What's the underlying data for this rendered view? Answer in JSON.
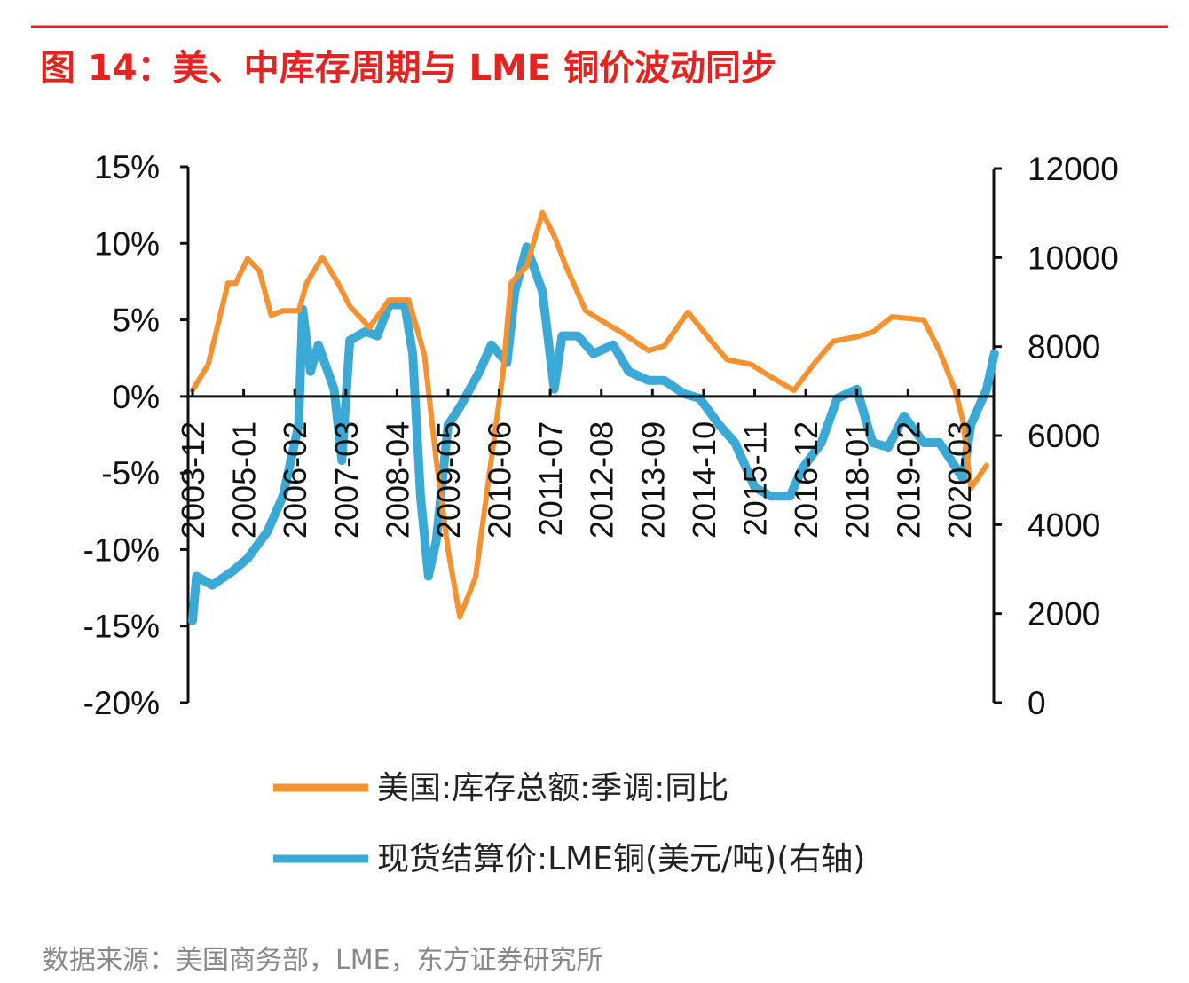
{
  "title": "图 14：美、中库存周期与 LME 铜价波动同步",
  "source": "数据来源：美国商务部，LME，东方证券研究所",
  "chart_data": {
    "type": "line",
    "title": "图 14：美、中库存周期与 LME 铜价波动同步",
    "x_tick_labels": [
      "2003-12",
      "2005-01",
      "2006-02",
      "2007-03",
      "2008-04",
      "2009-05",
      "2010-06",
      "2011-07",
      "2012-08",
      "2013-09",
      "2014-10",
      "2015-11",
      "2016-12",
      "2018-01",
      "2019-02",
      "2020-03"
    ],
    "left_axis": {
      "ylim": [
        -20,
        15
      ],
      "ticks": [
        15,
        10,
        5,
        0,
        -5,
        -10,
        -15,
        -20
      ],
      "tick_labels": [
        "15%",
        "10%",
        "5%",
        "0%",
        "-5%",
        "-10%",
        "-15%",
        "-20%"
      ]
    },
    "right_axis": {
      "ylim": [
        0,
        12000
      ],
      "ticks": [
        12000,
        10000,
        8000,
        6000,
        4000,
        2000,
        0
      ],
      "tick_labels": [
        "12000",
        "10000",
        "8000",
        "6000",
        "4000",
        "2000",
        "0"
      ]
    },
    "grid": false,
    "legend_position": "bottom",
    "series": [
      {
        "name": "美国:库存总额:季调:同比",
        "axis": "left",
        "color": "#F5922F",
        "points": [
          [
            "2003-12",
            0.4
          ],
          [
            "2004-04",
            2.1
          ],
          [
            "2004-09",
            7.4
          ],
          [
            "2004-11",
            7.4
          ],
          [
            "2005-02",
            9.0
          ],
          [
            "2005-05",
            8.2
          ],
          [
            "2005-08",
            5.3
          ],
          [
            "2005-11",
            5.6
          ],
          [
            "2006-03",
            5.6
          ],
          [
            "2006-05",
            7.4
          ],
          [
            "2006-09",
            9.1
          ],
          [
            "2007-01",
            7.4
          ],
          [
            "2007-04",
            5.9
          ],
          [
            "2007-09",
            4.5
          ],
          [
            "2008-02",
            6.3
          ],
          [
            "2008-07",
            6.3
          ],
          [
            "2008-11",
            2.7
          ],
          [
            "2009-02",
            -4.2
          ],
          [
            "2009-05",
            -10.0
          ],
          [
            "2009-08",
            -14.4
          ],
          [
            "2009-12",
            -11.8
          ],
          [
            "2010-03",
            -6.0
          ],
          [
            "2010-07",
            1.6
          ],
          [
            "2010-09",
            7.4
          ],
          [
            "2011-01",
            8.5
          ],
          [
            "2011-05",
            12.0
          ],
          [
            "2011-08",
            10.5
          ],
          [
            "2011-11",
            8.5
          ],
          [
            "2012-04",
            5.6
          ],
          [
            "2012-09",
            4.8
          ],
          [
            "2013-01",
            4.2
          ],
          [
            "2013-08",
            3.0
          ],
          [
            "2013-12",
            3.3
          ],
          [
            "2014-06",
            5.5
          ],
          [
            "2014-12",
            3.6
          ],
          [
            "2015-04",
            2.4
          ],
          [
            "2015-10",
            2.1
          ],
          [
            "2016-03",
            1.3
          ],
          [
            "2016-09",
            0.4
          ],
          [
            "2017-02",
            2.1
          ],
          [
            "2017-07",
            3.6
          ],
          [
            "2018-01",
            3.9
          ],
          [
            "2018-05",
            4.2
          ],
          [
            "2018-10",
            5.2
          ],
          [
            "2019-06",
            5.0
          ],
          [
            "2019-10",
            3.0
          ],
          [
            "2020-02",
            0.4
          ],
          [
            "2020-04",
            -1.6
          ],
          [
            "2020-06",
            -6.0
          ],
          [
            "2020-10",
            -4.5
          ]
        ]
      },
      {
        "name": "现货结算价:LME铜(美元/吨)(右轴)",
        "axis": "right",
        "color": "#3BA9D6",
        "points": [
          [
            "2003-12",
            1840
          ],
          [
            "2004-01",
            2840
          ],
          [
            "2004-05",
            2640
          ],
          [
            "2004-10",
            2940
          ],
          [
            "2005-02",
            3240
          ],
          [
            "2005-07",
            3840
          ],
          [
            "2005-11",
            4640
          ],
          [
            "2006-03",
            6240
          ],
          [
            "2006-04",
            8840
          ],
          [
            "2006-06",
            7440
          ],
          [
            "2006-08",
            8040
          ],
          [
            "2006-12",
            7040
          ],
          [
            "2007-02",
            5440
          ],
          [
            "2007-04",
            8140
          ],
          [
            "2007-08",
            8340
          ],
          [
            "2007-11",
            8240
          ],
          [
            "2008-02",
            8940
          ],
          [
            "2008-06",
            8940
          ],
          [
            "2008-08",
            7840
          ],
          [
            "2008-10",
            4640
          ],
          [
            "2008-12",
            2840
          ],
          [
            "2009-02",
            3640
          ],
          [
            "2009-05",
            6240
          ],
          [
            "2009-08",
            6640
          ],
          [
            "2010-01",
            7440
          ],
          [
            "2010-04",
            8040
          ],
          [
            "2010-08",
            7640
          ],
          [
            "2010-10",
            9240
          ],
          [
            "2011-01",
            10240
          ],
          [
            "2011-05",
            9240
          ],
          [
            "2011-08",
            7040
          ],
          [
            "2011-10",
            8240
          ],
          [
            "2012-02",
            8240
          ],
          [
            "2012-06",
            7840
          ],
          [
            "2012-11",
            8040
          ],
          [
            "2013-03",
            7440
          ],
          [
            "2013-08",
            7240
          ],
          [
            "2013-12",
            7240
          ],
          [
            "2014-05",
            6940
          ],
          [
            "2014-09",
            6840
          ],
          [
            "2015-02",
            6240
          ],
          [
            "2015-06",
            5840
          ],
          [
            "2015-11",
            4840
          ],
          [
            "2016-03",
            4640
          ],
          [
            "2016-08",
            4640
          ],
          [
            "2016-11",
            5240
          ],
          [
            "2017-04",
            5840
          ],
          [
            "2017-08",
            6840
          ],
          [
            "2018-01",
            7040
          ],
          [
            "2018-05",
            5840
          ],
          [
            "2018-09",
            5740
          ],
          [
            "2019-01",
            6440
          ],
          [
            "2019-06",
            5840
          ],
          [
            "2019-10",
            5840
          ],
          [
            "2020-04",
            5040
          ],
          [
            "2020-06",
            6240
          ],
          [
            "2020-10",
            7040
          ],
          [
            "2020-12",
            7840
          ]
        ]
      }
    ]
  }
}
